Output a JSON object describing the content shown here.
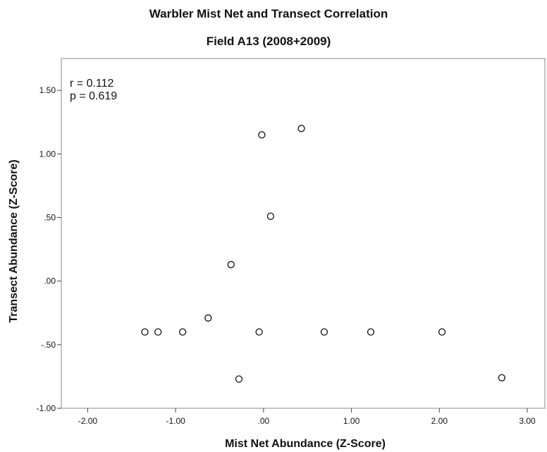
{
  "chart_data": {
    "type": "scatter",
    "title": "Warbler Mist Net and Transect Correlation",
    "subtitle": "Field A13 (2008+2009)",
    "xlabel": "Mist Net Abundance (Z-Score)",
    "ylabel": "Transect Abundance (Z-Score)",
    "xlim": [
      -2.3,
      3.2
    ],
    "ylim": [
      -1.0,
      1.75
    ],
    "x_ticks": [
      -2.0,
      -1.0,
      0.0,
      1.0,
      2.0,
      3.0
    ],
    "x_tick_labels": [
      "-2.00",
      "-1.00",
      ".00",
      "1.00",
      "2.00",
      "3.00"
    ],
    "y_ticks": [
      -1.0,
      -0.5,
      0.0,
      0.5,
      1.0,
      1.5
    ],
    "y_tick_labels": [
      "-1.00",
      "-.50",
      ".00",
      ".50",
      "1.00",
      "1.50"
    ],
    "annotations": [
      "r = 0.112",
      "p = 0.619"
    ],
    "grid": false,
    "points": [
      {
        "x": -1.35,
        "y": -0.4
      },
      {
        "x": -1.2,
        "y": -0.4
      },
      {
        "x": -0.92,
        "y": -0.4
      },
      {
        "x": -0.63,
        "y": -0.29
      },
      {
        "x": -0.37,
        "y": 0.13
      },
      {
        "x": -0.28,
        "y": -0.77
      },
      {
        "x": -0.05,
        "y": -0.4
      },
      {
        "x": -0.02,
        "y": 1.15
      },
      {
        "x": 0.08,
        "y": 0.51
      },
      {
        "x": 0.43,
        "y": 1.2
      },
      {
        "x": 0.69,
        "y": -0.4
      },
      {
        "x": 1.22,
        "y": -0.4
      },
      {
        "x": 2.03,
        "y": -0.4
      },
      {
        "x": 2.71,
        "y": -0.76
      }
    ]
  }
}
